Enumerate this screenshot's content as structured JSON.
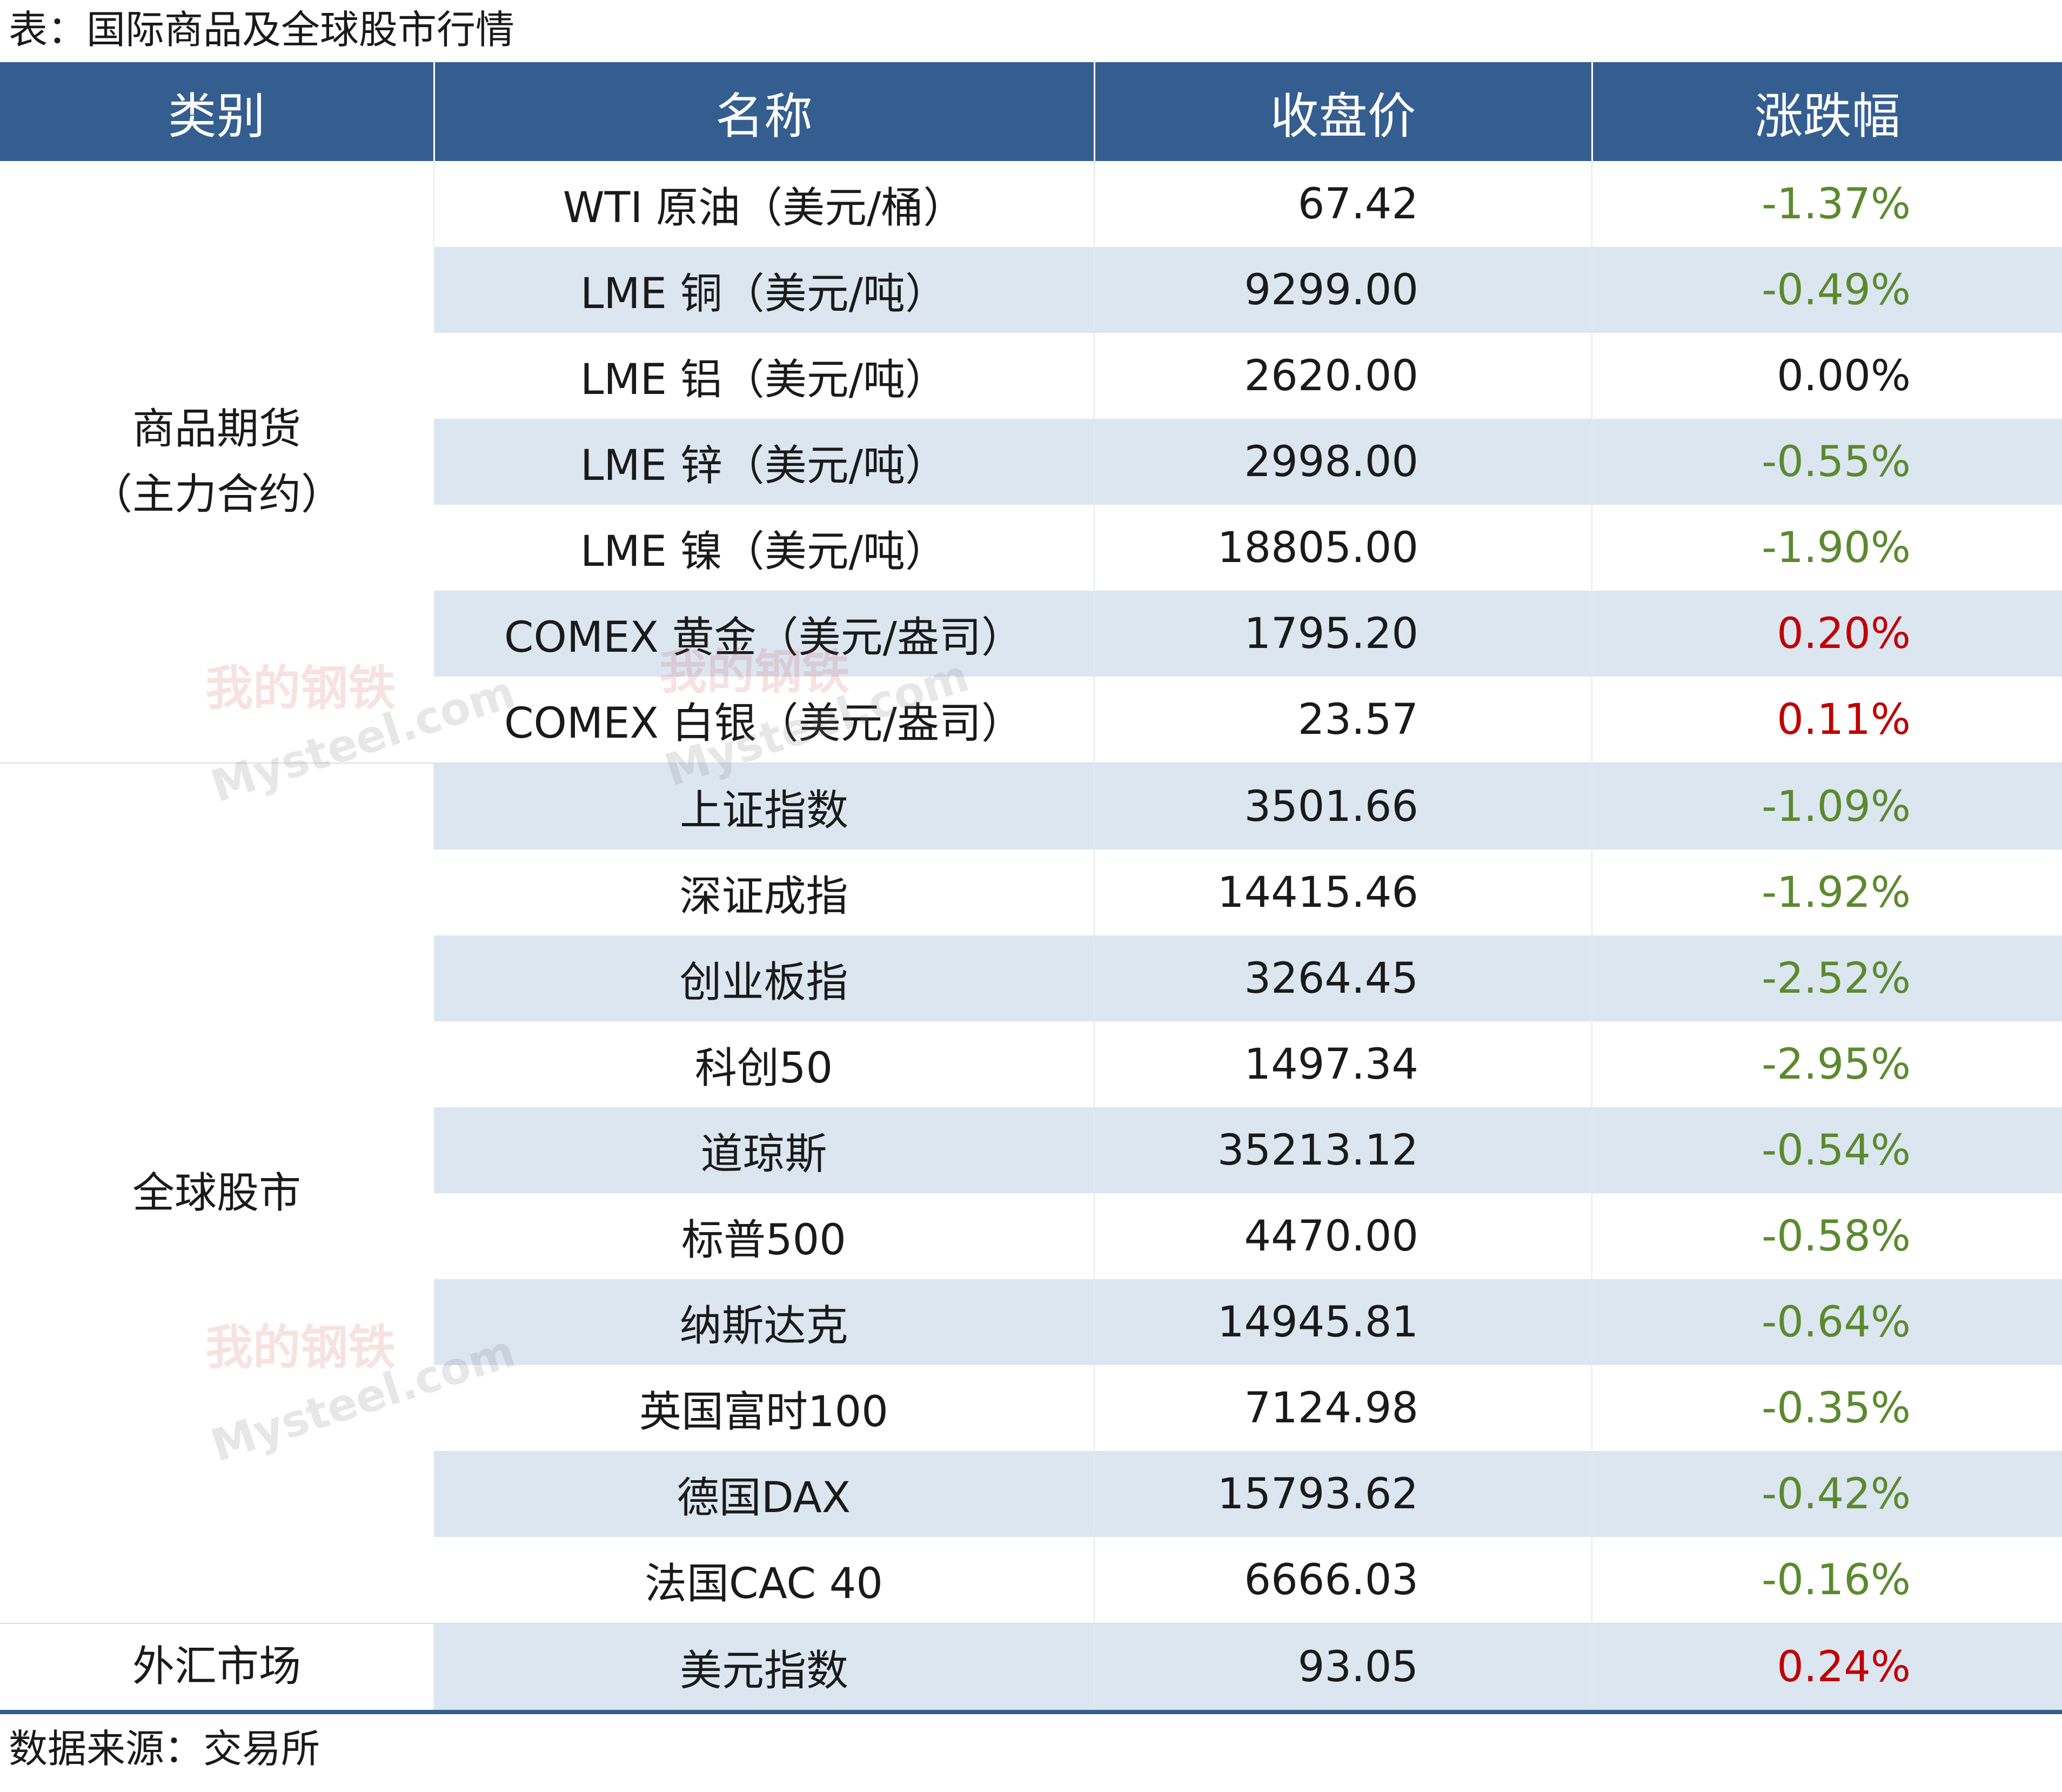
{
  "title": "表：国际商品及全球股市行情",
  "source": "数据来源：交易所",
  "watermark": {
    "cn": "我的钢铁",
    "en": "Mysteel.com"
  },
  "colors": {
    "header_bg": "#355e90",
    "row_alt": "#dce6f1",
    "down": "#5b8a2e",
    "up": "#c00000"
  },
  "headers": [
    "类别",
    "名称",
    "收盘价",
    "涨跌幅"
  ],
  "categories": [
    {
      "label_line1": "商品期货",
      "label_line2": "（主力合约）"
    },
    {
      "label_line1": "全球股市",
      "label_line2": ""
    },
    {
      "label_line1": "外汇市场",
      "label_line2": ""
    }
  ],
  "rows": [
    {
      "name": "WTI 原油（美元/桶）",
      "price": "67.42",
      "change": "-1.37%"
    },
    {
      "name": "LME 铜（美元/吨）",
      "price": "9299.00",
      "change": "-0.49%"
    },
    {
      "name": "LME 铝（美元/吨）",
      "price": "2620.00",
      "change": "0.00%"
    },
    {
      "name": "LME 锌（美元/吨）",
      "price": "2998.00",
      "change": "-0.55%"
    },
    {
      "name": "LME 镍（美元/吨）",
      "price": "18805.00",
      "change": "-1.90%"
    },
    {
      "name": "COMEX 黄金（美元/盎司）",
      "price": "1795.20",
      "change": "0.20%"
    },
    {
      "name": "COMEX 白银（美元/盎司）",
      "price": "23.57",
      "change": "0.11%"
    },
    {
      "name": "上证指数",
      "price": "3501.66",
      "change": "-1.09%"
    },
    {
      "name": "深证成指",
      "price": "14415.46",
      "change": "-1.92%"
    },
    {
      "name": "创业板指",
      "price": "3264.45",
      "change": "-2.52%"
    },
    {
      "name": "科创50",
      "price": "1497.34",
      "change": "-2.95%"
    },
    {
      "name": "道琼斯",
      "price": "35213.12",
      "change": "-0.54%"
    },
    {
      "name": "标普500",
      "price": "4470.00",
      "change": "-0.58%"
    },
    {
      "name": "纳斯达克",
      "price": "14945.81",
      "change": "-0.64%"
    },
    {
      "name": "英国富时100",
      "price": "7124.98",
      "change": "-0.35%"
    },
    {
      "name": "德国DAX",
      "price": "15793.62",
      "change": "-0.42%"
    },
    {
      "name": "法国CAC 40",
      "price": "6666.03",
      "change": "-0.16%"
    },
    {
      "name": "美元指数",
      "price": "93.05",
      "change": "0.24%"
    }
  ]
}
